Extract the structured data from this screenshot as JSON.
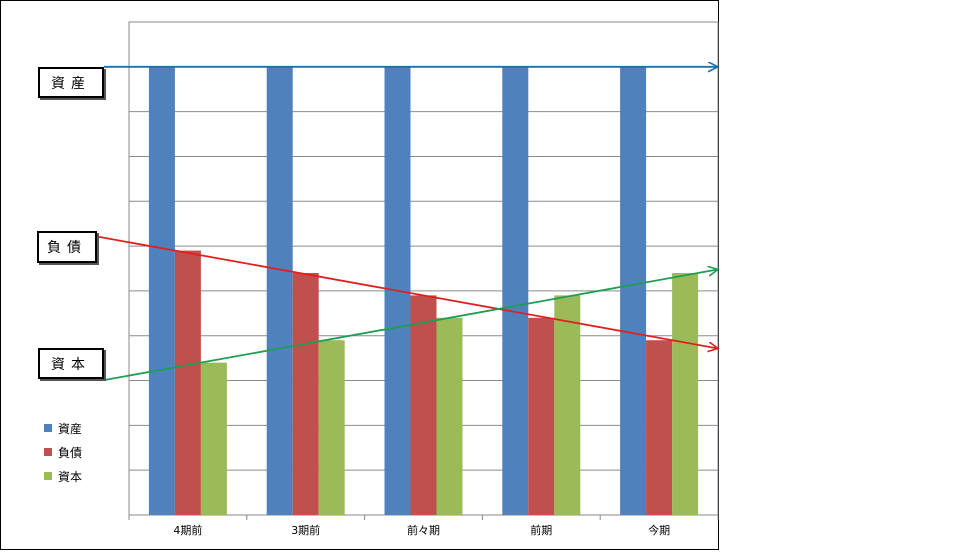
{
  "chart_data": {
    "type": "bar",
    "categories": [
      "4期前",
      "3期前",
      "前々期",
      "前期",
      "今期"
    ],
    "series": [
      {
        "name": "資産",
        "values": [
          100,
          100,
          100,
          100,
          100
        ],
        "color": "#4F81BD"
      },
      {
        "name": "負債",
        "values": [
          59,
          54,
          49,
          44,
          39
        ],
        "color": "#C0504D"
      },
      {
        "name": "資本",
        "values": [
          34,
          39,
          44,
          49,
          54
        ],
        "color": "#9BBB59"
      }
    ],
    "ylim": [
      0,
      110
    ],
    "grid": true,
    "legend_position": "bottom-left",
    "annotations": [
      {
        "label": "資産",
        "series": "資産",
        "arrow_color": "#1F6FA8"
      },
      {
        "label": "負債",
        "series": "負債",
        "arrow_color": "#E02020"
      },
      {
        "label": "資本",
        "series": "資本",
        "arrow_color": "#1E9E55"
      }
    ]
  }
}
